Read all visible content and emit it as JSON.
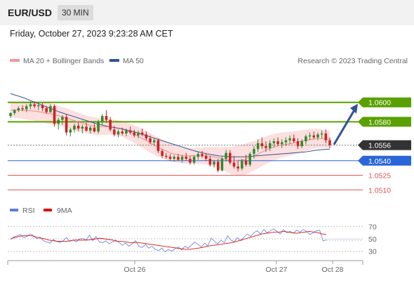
{
  "header": {
    "symbol": "EUR/USD",
    "timeframe": "30 MIN"
  },
  "datetime": "Friday, October 27, 2023 9:23:28 AM CET",
  "legend": {
    "ma20": "MA 20 + Bollinger Bands",
    "ma50": "MA 50",
    "credit": "Research © 2023 Trading Central",
    "rsi": "RSI",
    "rsi_ma": "9MA"
  },
  "colors": {
    "bullish": "#2e8b2e",
    "bearish": "#cc2222",
    "ma20": "#ef9a9a",
    "ma50": "#2f5597",
    "green_level": "#5aa000",
    "blue_level": "#2b66d9",
    "red_level": "#e05555",
    "current": "#333333",
    "rsi": "#5b7fd6",
    "rsi_ma": "#e01010"
  },
  "chart_data": {
    "type": "candlestick",
    "ylim": [
      1.0503,
      1.0633
    ],
    "levels": [
      {
        "value": 1.06,
        "label": "1.0600",
        "kind": "resistance",
        "style": "green"
      },
      {
        "value": 1.058,
        "label": "1.0580",
        "kind": "resistance",
        "style": "green"
      },
      {
        "value": 1.0556,
        "label": "1.0556",
        "kind": "current",
        "style": "dark"
      },
      {
        "value": 1.054,
        "label": "1.0540",
        "kind": "pivot",
        "style": "blue"
      },
      {
        "value": 1.0525,
        "label": "1.0525",
        "kind": "support",
        "style": "red"
      },
      {
        "value": 1.051,
        "label": "1.0510",
        "kind": "support",
        "style": "red"
      }
    ],
    "forecast_arrow": {
      "from": 1.0556,
      "to": 1.06
    },
    "x_ticks": [
      "Oct 26",
      "Oct 27",
      "Oct 28"
    ],
    "candles": [
      [
        1.0586,
        1.059,
        1.0584,
        1.0589
      ],
      [
        1.0589,
        1.0593,
        1.0587,
        1.0592
      ],
      [
        1.0592,
        1.0596,
        1.059,
        1.0594
      ],
      [
        1.0594,
        1.0597,
        1.0591,
        1.0593
      ],
      [
        1.0593,
        1.0598,
        1.059,
        1.0596
      ],
      [
        1.0596,
        1.0601,
        1.0593,
        1.0598
      ],
      [
        1.0598,
        1.0601,
        1.0594,
        1.0596
      ],
      [
        1.0596,
        1.06,
        1.0592,
        1.0597
      ],
      [
        1.0597,
        1.0599,
        1.0591,
        1.0594
      ],
      [
        1.0594,
        1.0596,
        1.0588,
        1.059
      ],
      [
        1.059,
        1.0598,
        1.0589,
        1.0596
      ],
      [
        1.0596,
        1.0598,
        1.0575,
        1.0578
      ],
      [
        1.0578,
        1.0584,
        1.0572,
        1.0582
      ],
      [
        1.0582,
        1.0587,
        1.0577,
        1.0585
      ],
      [
        1.0585,
        1.0588,
        1.0566,
        1.0569
      ],
      [
        1.0569,
        1.0574,
        1.0565,
        1.0572
      ],
      [
        1.0572,
        1.0578,
        1.0569,
        1.0576
      ],
      [
        1.0576,
        1.058,
        1.057,
        1.0573
      ],
      [
        1.0573,
        1.0577,
        1.0568,
        1.0575
      ],
      [
        1.0575,
        1.0579,
        1.057,
        1.0571
      ],
      [
        1.0571,
        1.0576,
        1.0568,
        1.0574
      ],
      [
        1.0574,
        1.0578,
        1.0569,
        1.057
      ],
      [
        1.057,
        1.0582,
        1.0568,
        1.058
      ],
      [
        1.058,
        1.0588,
        1.0577,
        1.0586
      ],
      [
        1.0586,
        1.0592,
        1.0579,
        1.0582
      ],
      [
        1.0582,
        1.0585,
        1.057,
        1.0572
      ],
      [
        1.0572,
        1.0576,
        1.0565,
        1.0567
      ],
      [
        1.0567,
        1.0572,
        1.0564,
        1.057
      ],
      [
        1.057,
        1.0574,
        1.0566,
        1.0568
      ],
      [
        1.0568,
        1.0573,
        1.0565,
        1.0571
      ],
      [
        1.0571,
        1.0575,
        1.0567,
        1.0569
      ],
      [
        1.0569,
        1.0572,
        1.0564,
        1.0566
      ],
      [
        1.0566,
        1.0571,
        1.0563,
        1.0569
      ],
      [
        1.0569,
        1.0573,
        1.0565,
        1.0567
      ],
      [
        1.0567,
        1.057,
        1.0561,
        1.0563
      ],
      [
        1.0563,
        1.0566,
        1.0557,
        1.0559
      ],
      [
        1.0559,
        1.0563,
        1.0555,
        1.0561
      ],
      [
        1.0561,
        1.0563,
        1.0548,
        1.055
      ],
      [
        1.055,
        1.0552,
        1.0543,
        1.0545
      ],
      [
        1.0545,
        1.0548,
        1.0542,
        1.0544
      ],
      [
        1.0544,
        1.0547,
        1.054,
        1.0542
      ],
      [
        1.0542,
        1.0546,
        1.0539,
        1.0544
      ],
      [
        1.0544,
        1.0547,
        1.054,
        1.0541
      ],
      [
        1.0541,
        1.0546,
        1.0538,
        1.0544
      ],
      [
        1.0544,
        1.0548,
        1.054,
        1.0542
      ],
      [
        1.0542,
        1.0545,
        1.0536,
        1.0538
      ],
      [
        1.0538,
        1.0546,
        1.0536,
        1.0544
      ],
      [
        1.0544,
        1.0549,
        1.0541,
        1.0547
      ],
      [
        1.0547,
        1.055,
        1.0543,
        1.0545
      ],
      [
        1.0545,
        1.0548,
        1.054,
        1.0542
      ],
      [
        1.0542,
        1.0545,
        1.0534,
        1.0536
      ],
      [
        1.0536,
        1.0541,
        1.0533,
        1.0539
      ],
      [
        1.0539,
        1.0542,
        1.0528,
        1.053
      ],
      [
        1.053,
        1.0544,
        1.0529,
        1.0542
      ],
      [
        1.0542,
        1.0551,
        1.0539,
        1.0548
      ],
      [
        1.0548,
        1.0551,
        1.0536,
        1.0538
      ],
      [
        1.0538,
        1.0545,
        1.0532,
        1.0534
      ],
      [
        1.0534,
        1.054,
        1.0529,
        1.0532
      ],
      [
        1.0532,
        1.0542,
        1.053,
        1.054
      ],
      [
        1.054,
        1.0546,
        1.0534,
        1.0536
      ],
      [
        1.0536,
        1.0549,
        1.0534,
        1.0547
      ],
      [
        1.0547,
        1.0555,
        1.0542,
        1.0552
      ],
      [
        1.0552,
        1.0562,
        1.0549,
        1.0558
      ],
      [
        1.0558,
        1.0564,
        1.0552,
        1.0555
      ],
      [
        1.0555,
        1.056,
        1.0549,
        1.0553
      ],
      [
        1.0553,
        1.0561,
        1.055,
        1.0558
      ],
      [
        1.0558,
        1.0563,
        1.0554,
        1.056
      ],
      [
        1.056,
        1.0564,
        1.0555,
        1.0557
      ],
      [
        1.0557,
        1.0562,
        1.0553,
        1.0559
      ],
      [
        1.0559,
        1.0564,
        1.0555,
        1.0561
      ],
      [
        1.0561,
        1.0566,
        1.0557,
        1.0563
      ],
      [
        1.0563,
        1.0567,
        1.0558,
        1.056
      ],
      [
        1.056,
        1.0563,
        1.0552,
        1.0555
      ],
      [
        1.0555,
        1.0562,
        1.0553,
        1.056
      ],
      [
        1.056,
        1.0567,
        1.0557,
        1.0565
      ],
      [
        1.0565,
        1.0569,
        1.0561,
        1.0566
      ],
      [
        1.0566,
        1.057,
        1.0562,
        1.0564
      ],
      [
        1.0564,
        1.0569,
        1.0561,
        1.0567
      ],
      [
        1.0567,
        1.0571,
        1.0563,
        1.0568
      ],
      [
        1.0568,
        1.0572,
        1.0558,
        1.0561
      ],
      [
        1.0561,
        1.0564,
        1.0553,
        1.0556
      ]
    ],
    "ma20": [
      1.0592,
      1.0592,
      1.0591,
      1.0589,
      1.0586,
      1.0582,
      1.0578,
      1.0575,
      1.0575,
      1.0573,
      1.0568,
      1.0561,
      1.0554,
      1.0548,
      1.0545,
      1.0545,
      1.0545,
      1.0543,
      1.054,
      1.0541,
      1.0546,
      1.0552,
      1.0556,
      1.0558,
      1.0561,
      1.0563,
      1.0562
    ],
    "ma20_band_offset": [
      0.0007,
      0.0009,
      0.001,
      0.0011,
      0.001,
      0.001,
      0.0009,
      0.0009,
      0.0008,
      0.0008,
      0.0009,
      0.001,
      0.001,
      0.0009,
      0.0008,
      0.0008,
      0.0009,
      0.0011,
      0.0014,
      0.0016,
      0.0015,
      0.0014,
      0.0013,
      0.0012,
      0.0011,
      0.001,
      0.0009
    ],
    "ma50": [
      1.0609,
      1.0605,
      1.06,
      1.0595,
      1.059,
      1.0586,
      1.0582,
      1.0578,
      1.0575,
      1.0573,
      1.057,
      1.0566,
      1.0562,
      1.0558,
      1.0554,
      1.055,
      1.0547,
      1.0545,
      1.0544,
      1.0544,
      1.0545,
      1.0546,
      1.0547,
      1.0548,
      1.0549,
      1.0551,
      1.0552
    ],
    "rsi": {
      "ylim": [
        25,
        75
      ],
      "ticks": [
        70,
        50,
        30
      ],
      "values": [
        49,
        53,
        55,
        57,
        52,
        54,
        58,
        55,
        50,
        53,
        47,
        45,
        43,
        49,
        46,
        44,
        47,
        52,
        46,
        48,
        45,
        50,
        51,
        48,
        56,
        47,
        54,
        45,
        44,
        47,
        42,
        45,
        48,
        44,
        40,
        43,
        38,
        42,
        47,
        38,
        36,
        41,
        35,
        38,
        33,
        31,
        35,
        29,
        33,
        30,
        34,
        37,
        32,
        38,
        35,
        40,
        45,
        41,
        37,
        43,
        39,
        51,
        46,
        42,
        48,
        44,
        55,
        48,
        45,
        52,
        47,
        53,
        58,
        54,
        60,
        63,
        58,
        65,
        60,
        63,
        66,
        62,
        58,
        65,
        60,
        62,
        59,
        64,
        61,
        65,
        62,
        57,
        60,
        63,
        64,
        47,
        48
      ],
      "ma": [
        50,
        52,
        54,
        55,
        55,
        55,
        53,
        51,
        50,
        48,
        47,
        46,
        46,
        46,
        47,
        48,
        48,
        48,
        48,
        49,
        50,
        51,
        50,
        49,
        48,
        46,
        46,
        45,
        44,
        44,
        44,
        43,
        42,
        41,
        40,
        39,
        38,
        37,
        36,
        35,
        34,
        33,
        33,
        34,
        35,
        36,
        38,
        39,
        40,
        41,
        42,
        43,
        44,
        46,
        48,
        50,
        52,
        54,
        56,
        58,
        59,
        60,
        61,
        61,
        62,
        61,
        60,
        59,
        60,
        61,
        62,
        61,
        60,
        58,
        57
      ]
    }
  }
}
